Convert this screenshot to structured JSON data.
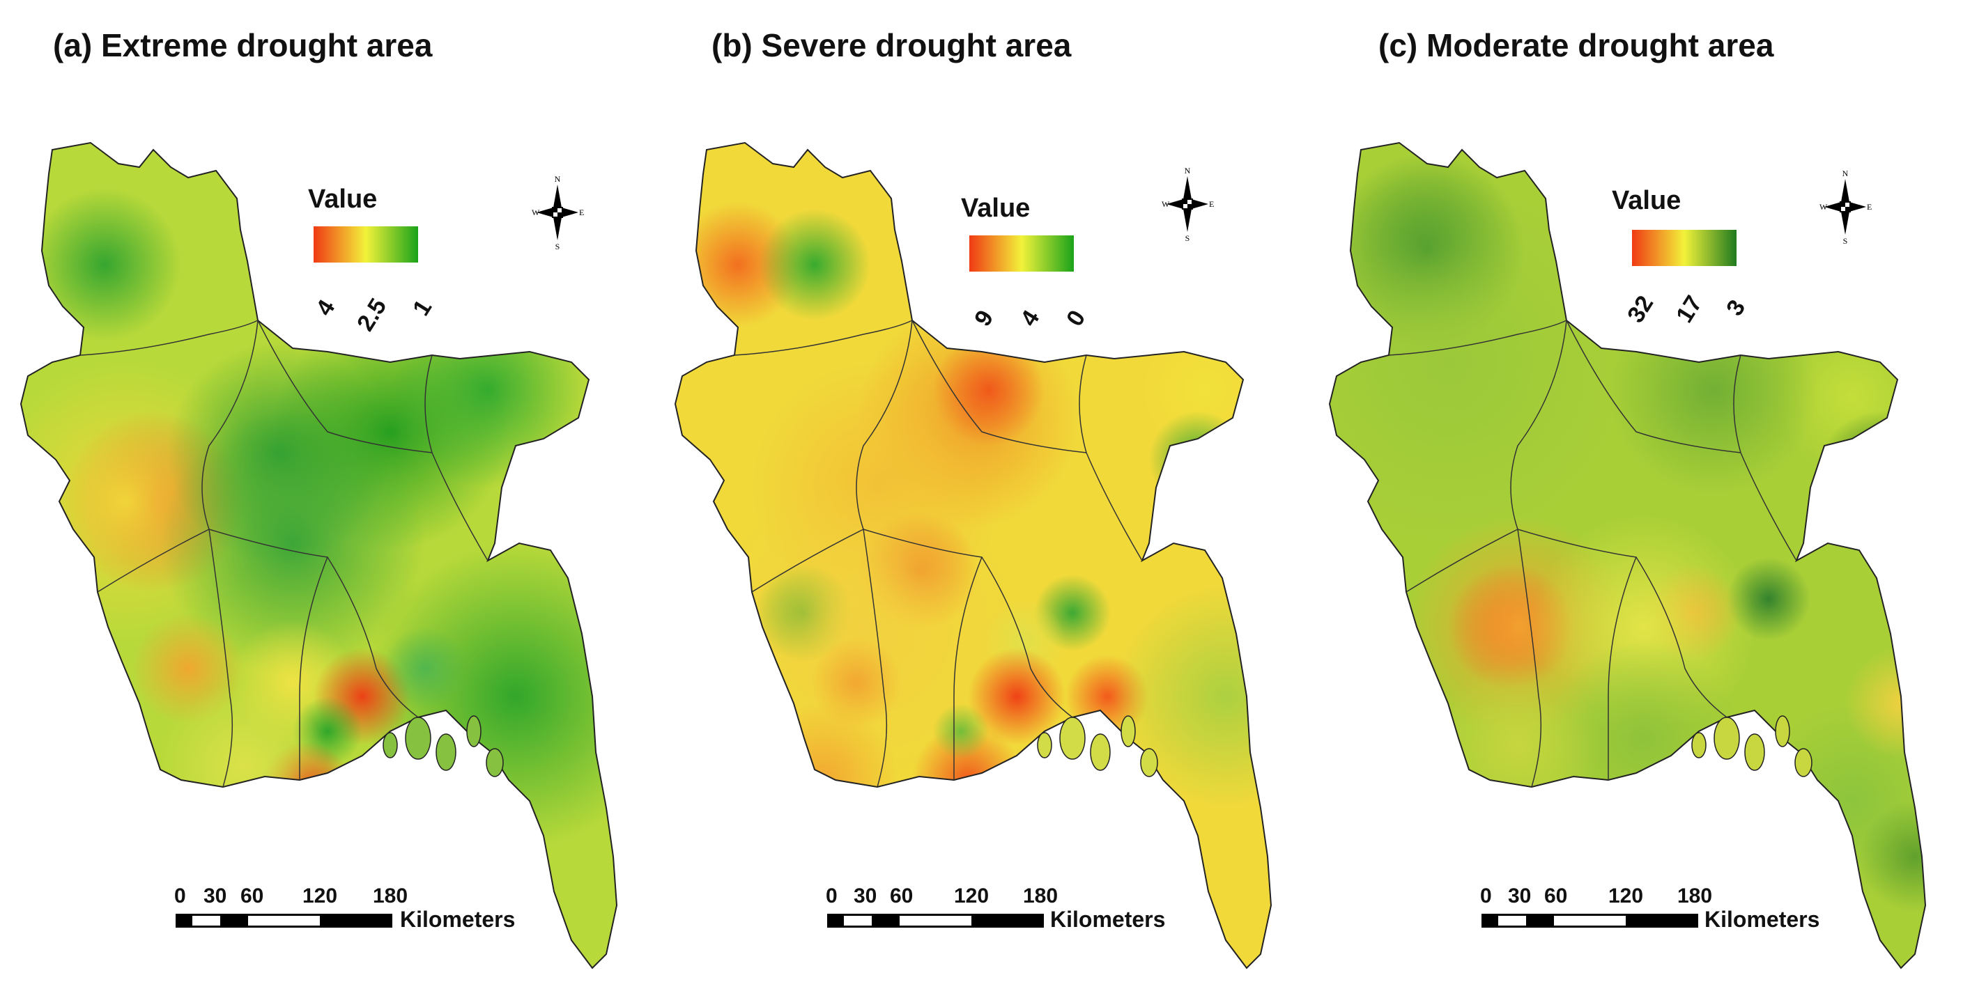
{
  "panels": [
    {
      "title": "(a) Extreme drought area",
      "legend": {
        "title": "Value",
        "ticks": [
          "4",
          "2.5",
          "1"
        ],
        "colors": [
          "#f03a14",
          "#f2f23a",
          "#1aa31a"
        ]
      },
      "compass": {
        "n": "N",
        "s": "S",
        "e": "E",
        "w": "W"
      },
      "scale": {
        "ticks": [
          "0",
          "30",
          "60",
          "120",
          "180"
        ],
        "unit": "Kilometers"
      }
    },
    {
      "title": "(b) Severe drought area",
      "legend": {
        "title": "Value",
        "ticks": [
          "9",
          "4",
          "0"
        ],
        "colors": [
          "#f03a14",
          "#f2f23a",
          "#1aa31a"
        ]
      },
      "compass": {
        "n": "N",
        "s": "S",
        "e": "E",
        "w": "W"
      },
      "scale": {
        "ticks": [
          "0",
          "30",
          "60",
          "120",
          "180"
        ],
        "unit": "Kilometers"
      }
    },
    {
      "title": "(c) Moderate drought area",
      "legend": {
        "title": "Value",
        "ticks": [
          "32",
          "17",
          "3"
        ],
        "colors": [
          "#f03a14",
          "#f2f23a",
          "#1f7a1f"
        ]
      },
      "compass": {
        "n": "N",
        "s": "S",
        "e": "E",
        "w": "W"
      },
      "scale": {
        "ticks": [
          "0",
          "30",
          "60",
          "120",
          "180"
        ],
        "unit": "Kilometers"
      }
    }
  ]
}
